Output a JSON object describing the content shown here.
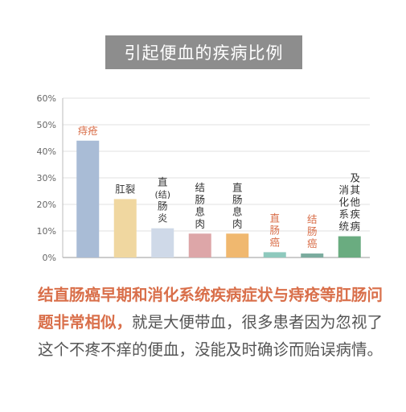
{
  "title": "引起便血的疾病比例",
  "chart_data": {
    "type": "bar",
    "categories": [
      "痔疮",
      "肛裂",
      "直(结)肠炎",
      "结肠息肉",
      "直肠息肉",
      "直肠癌",
      "结肠癌",
      "消化系统及其他疾病"
    ],
    "values": [
      44,
      22,
      11,
      9,
      9,
      2,
      1.5,
      8
    ],
    "ylim": [
      0,
      60
    ],
    "yticks": [
      "0%",
      "10%",
      "20%",
      "30%",
      "40%",
      "50%",
      "60%"
    ],
    "grid": true,
    "labels": [
      {
        "lines": [
          "痔疮"
        ],
        "color": "#d96f4a",
        "orientation": "horizontal"
      },
      {
        "lines": [
          "肛裂"
        ],
        "color": "#333333",
        "orientation": "horizontal"
      },
      {
        "lines": [
          "直",
          "(结)",
          "肠",
          "炎"
        ],
        "color": "#333333",
        "orientation": "vertical"
      },
      {
        "lines": [
          "结",
          "肠",
          "息",
          "肉"
        ],
        "color": "#333333",
        "orientation": "vertical"
      },
      {
        "lines": [
          "直",
          "肠",
          "息",
          "肉"
        ],
        "color": "#333333",
        "orientation": "vertical"
      },
      {
        "lines": [
          "直",
          "肠",
          "癌"
        ],
        "color": "#d96f4a",
        "orientation": "vertical"
      },
      {
        "lines": [
          "结",
          "肠",
          "癌"
        ],
        "color": "#d96f4a",
        "orientation": "vertical"
      },
      {
        "columns": [
          [
            "消",
            "化",
            "系",
            "统"
          ],
          [
            "及",
            "其",
            "他",
            "疾",
            "病"
          ]
        ],
        "color": "#333333",
        "orientation": "two-column"
      }
    ],
    "colors": [
      "#a9bcd6",
      "#f0d7a0",
      "#cfd9e8",
      "#dda6a8",
      "#f0b86f",
      "#8ec9bd",
      "#7aab9e",
      "#6aac80"
    ]
  },
  "caption": {
    "highlight": "结直肠癌早期和消化系统疾病症状与痔疮等肛肠问题非常相似，",
    "body": "就是大便带血，很多患者因为忽视了这个不疼不痒的便血，没能及时确诊而贻误病情。"
  }
}
